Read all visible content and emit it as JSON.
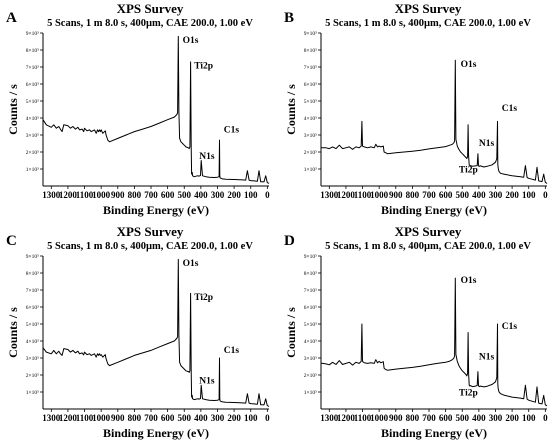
{
  "chart_data": [
    {
      "panel": "A",
      "type": "line",
      "title": "XPS Survey",
      "subtitle": "5 Scans, 1 m 8.0 s, 400µm, CAE 200.0, 1.00 eV",
      "xlabel": "Binding Energy (eV)",
      "ylabel": "Counts / s",
      "xlim": [
        1350,
        -10
      ],
      "x_reversed": true,
      "ylim": [
        0,
        900000
      ],
      "x_ticks": [
        1300,
        1200,
        1100,
        1000,
        900,
        800,
        700,
        600,
        500,
        400,
        300,
        200,
        100,
        0
      ],
      "y_ticks": [
        100000,
        200000,
        300000,
        400000,
        500000,
        600000,
        700000,
        800000,
        900000
      ],
      "y_tick_labels": [
        "1×10⁵",
        "2×10⁵",
        "3×10⁵",
        "4×10⁵",
        "5×10⁵",
        "6×10⁵",
        "7×10⁵",
        "8×10⁵",
        "9×10⁵"
      ],
      "grid": false,
      "series": [
        {
          "x": [
            1350,
            1330,
            1300,
            1285,
            1270,
            1255,
            1245,
            1235,
            1225,
            1200,
            1185,
            1170,
            1155,
            1140,
            1130,
            1115,
            1105,
            1100,
            1085,
            1070,
            1060,
            1040,
            1030,
            1022,
            1016,
            1010,
            1005,
            1000,
            990,
            975,
            970,
            960,
            950,
            900,
            850,
            800,
            750,
            700,
            650,
            600,
            560,
            545,
            540,
            536,
            532,
            528,
            524,
            520,
            510,
            500,
            490,
            475,
            470,
            466,
            462,
            458,
            456,
            452,
            450,
            440,
            420,
            410,
            402,
            398,
            390,
            370,
            350,
            320,
            300,
            290,
            288,
            286,
            284,
            282,
            278,
            270,
            250,
            200,
            150,
            130,
            120,
            110,
            100,
            80,
            60,
            50,
            40,
            30,
            20,
            10,
            0,
            -10
          ],
          "y": [
            390000,
            360000,
            345000,
            360000,
            340000,
            350000,
            335000,
            320000,
            360000,
            355000,
            340000,
            350000,
            335000,
            345000,
            330000,
            335000,
            320000,
            340000,
            325000,
            330000,
            320000,
            330000,
            310000,
            330000,
            320000,
            330000,
            320000,
            330000,
            310000,
            325000,
            300000,
            270000,
            260000,
            280000,
            300000,
            320000,
            335000,
            350000,
            370000,
            390000,
            405000,
            420000,
            430000,
            880000,
            440000,
            280000,
            270000,
            260000,
            250000,
            240000,
            230000,
            225000,
            220000,
            230000,
            730000,
            230000,
            70000,
            80000,
            60000,
            55000,
            60000,
            58000,
            62000,
            150000,
            60000,
            55000,
            52000,
            50000,
            52000,
            55000,
            270000,
            60000,
            48000,
            46000,
            45000,
            42000,
            40000,
            38000,
            36000,
            35000,
            90000,
            35000,
            32000,
            30000,
            28000,
            90000,
            25000,
            25000,
            24000,
            60000,
            20000,
            15000
          ]
        }
      ],
      "annotations": [
        {
          "text": "O1s",
          "x": 510,
          "y": 840000
        },
        {
          "text": "Ti2p",
          "x": 440,
          "y": 690000
        },
        {
          "text": "C1s",
          "x": 262,
          "y": 315000
        },
        {
          "text": "N1s",
          "x": 410,
          "y": 160000
        }
      ]
    },
    {
      "panel": "B",
      "type": "line",
      "title": "XPS Survey",
      "subtitle": "5 Scans, 1 m 8.0 s, 400µm, CAE 200.0, 1.00 eV",
      "xlabel": "Binding Energy (eV)",
      "ylabel": "Counts / s",
      "xlim": [
        1350,
        -10
      ],
      "x_reversed": true,
      "ylim": [
        0,
        900000
      ],
      "x_ticks": [
        1300,
        1200,
        1100,
        1000,
        900,
        800,
        700,
        600,
        500,
        400,
        300,
        200,
        100,
        0
      ],
      "y_ticks": [
        100000,
        200000,
        300000,
        400000,
        500000,
        600000,
        700000,
        800000,
        900000
      ],
      "y_tick_labels": [
        "1×10⁵",
        "2×10⁵",
        "3×10⁵",
        "4×10⁵",
        "5×10⁵",
        "6×10⁵",
        "7×10⁵",
        "8×10⁵",
        "9×10⁵"
      ],
      "grid": false,
      "series": [
        {
          "x": [
            1350,
            1320,
            1300,
            1280,
            1260,
            1240,
            1220,
            1200,
            1180,
            1160,
            1140,
            1120,
            1108,
            1104,
            1100,
            1090,
            1070,
            1050,
            1030,
            1020,
            1010,
            1000,
            990,
            975,
            970,
            960,
            950,
            900,
            850,
            800,
            750,
            700,
            650,
            600,
            575,
            560,
            550,
            546,
            542,
            538,
            534,
            530,
            520,
            510,
            500,
            490,
            480,
            472,
            468,
            465,
            462,
            458,
            454,
            450,
            440,
            420,
            410,
            406,
            402,
            398,
            390,
            370,
            350,
            320,
            300,
            292,
            288,
            286,
            284,
            282,
            278,
            270,
            250,
            200,
            150,
            130,
            120,
            110,
            100,
            80,
            60,
            50,
            40,
            30,
            20,
            10,
            0,
            -10
          ],
          "y": [
            225000,
            225000,
            220000,
            230000,
            220000,
            240000,
            220000,
            225000,
            230000,
            215000,
            230000,
            225000,
            235000,
            380000,
            235000,
            230000,
            225000,
            230000,
            225000,
            245000,
            230000,
            235000,
            230000,
            235000,
            200000,
            195000,
            190000,
            195000,
            200000,
            205000,
            210000,
            218000,
            225000,
            232000,
            240000,
            245000,
            255000,
            265000,
            740000,
            275000,
            255000,
            235000,
            215000,
            200000,
            190000,
            180000,
            170000,
            162000,
            175000,
            360000,
            175000,
            125000,
            118000,
            120000,
            116000,
            118000,
            120000,
            190000,
            120000,
            115000,
            118000,
            112000,
            116000,
            125000,
            140000,
            160000,
            380000,
            130000,
            110000,
            95000,
            85000,
            75000,
            70000,
            60000,
            55000,
            52000,
            120000,
            50000,
            45000,
            40000,
            35000,
            110000,
            30000,
            28000,
            26000,
            70000,
            22000,
            15000
          ]
        }
      ],
      "annotations": [
        {
          "text": "O1s",
          "x": 510,
          "y": 700000
        },
        {
          "text": "C1s",
          "x": 262,
          "y": 440000
        },
        {
          "text": "N1s",
          "x": 400,
          "y": 235000
        },
        {
          "text": "Ti2p",
          "x": 520,
          "y": 80000
        }
      ]
    },
    {
      "panel": "C",
      "type": "line",
      "title": "XPS Survey",
      "subtitle": "5 Scans, 1 m 8.0 s, 400µm, CAE 200.0, 1.00 eV",
      "xlabel": "Binding Energy (eV)",
      "ylabel": "Counts / s",
      "xlim": [
        1350,
        -10
      ],
      "x_reversed": true,
      "ylim": [
        0,
        900000
      ],
      "x_ticks": [
        1300,
        1200,
        1100,
        1000,
        900,
        800,
        700,
        600,
        500,
        400,
        300,
        200,
        100,
        0
      ],
      "y_ticks": [
        100000,
        200000,
        300000,
        400000,
        500000,
        600000,
        700000,
        800000,
        900000
      ],
      "y_tick_labels": [
        "1×10⁵",
        "2×10⁵",
        "3×10⁵",
        "4×10⁵",
        "5×10⁵",
        "6×10⁵",
        "7×10⁵",
        "8×10⁵",
        "9×10⁵"
      ],
      "grid": false,
      "series": [
        {
          "x": [
            1350,
            1330,
            1300,
            1285,
            1270,
            1255,
            1245,
            1235,
            1225,
            1200,
            1185,
            1170,
            1155,
            1140,
            1130,
            1115,
            1105,
            1100,
            1085,
            1070,
            1060,
            1040,
            1030,
            1022,
            1016,
            1010,
            1005,
            1000,
            990,
            975,
            970,
            960,
            950,
            900,
            850,
            800,
            750,
            700,
            650,
            600,
            560,
            545,
            540,
            536,
            532,
            528,
            524,
            520,
            510,
            500,
            490,
            475,
            470,
            466,
            462,
            458,
            456,
            452,
            450,
            440,
            420,
            410,
            402,
            398,
            390,
            370,
            350,
            320,
            300,
            290,
            288,
            286,
            284,
            282,
            278,
            270,
            250,
            200,
            150,
            130,
            120,
            110,
            100,
            80,
            60,
            50,
            40,
            30,
            20,
            10,
            0,
            -10
          ],
          "y": [
            360000,
            335000,
            325000,
            345000,
            325000,
            340000,
            325000,
            315000,
            355000,
            350000,
            335000,
            345000,
            330000,
            340000,
            325000,
            330000,
            318000,
            335000,
            320000,
            325000,
            315000,
            325000,
            305000,
            325000,
            315000,
            325000,
            315000,
            320000,
            305000,
            320000,
            295000,
            265000,
            255000,
            275000,
            295000,
            315000,
            330000,
            345000,
            365000,
            385000,
            400000,
            415000,
            425000,
            880000,
            435000,
            275000,
            265000,
            255000,
            245000,
            235000,
            225000,
            220000,
            215000,
            225000,
            680000,
            225000,
            70000,
            80000,
            60000,
            55000,
            60000,
            58000,
            62000,
            140000,
            60000,
            55000,
            52000,
            50000,
            52000,
            55000,
            300000,
            60000,
            48000,
            46000,
            45000,
            42000,
            40000,
            38000,
            36000,
            35000,
            90000,
            35000,
            32000,
            30000,
            28000,
            90000,
            25000,
            25000,
            24000,
            60000,
            20000,
            15000
          ]
        }
      ],
      "annotations": [
        {
          "text": "O1s",
          "x": 510,
          "y": 840000
        },
        {
          "text": "Ti2p",
          "x": 440,
          "y": 640000
        },
        {
          "text": "C1s",
          "x": 262,
          "y": 330000
        },
        {
          "text": "N1s",
          "x": 410,
          "y": 150000
        }
      ]
    },
    {
      "panel": "D",
      "type": "line",
      "title": "XPS Survey",
      "subtitle": "5 Scans, 1 m 8.0 s, 400µm, CAE 200.0, 1.00 eV",
      "xlabel": "Binding Energy (eV)",
      "ylabel": "Counts / s",
      "xlim": [
        1350,
        -10
      ],
      "x_reversed": true,
      "ylim": [
        0,
        900000
      ],
      "x_ticks": [
        1300,
        1200,
        1100,
        1000,
        900,
        800,
        700,
        600,
        500,
        400,
        300,
        200,
        100,
        0
      ],
      "y_ticks": [
        100000,
        200000,
        300000,
        400000,
        500000,
        600000,
        700000,
        800000,
        900000
      ],
      "y_tick_labels": [
        "1×10⁵",
        "2×10⁵",
        "3×10⁵",
        "4×10⁵",
        "5×10⁵",
        "6×10⁵",
        "7×10⁵",
        "8×10⁵",
        "9×10⁵"
      ],
      "grid": false,
      "series": [
        {
          "x": [
            1350,
            1320,
            1300,
            1280,
            1260,
            1240,
            1220,
            1200,
            1180,
            1160,
            1140,
            1120,
            1108,
            1104,
            1100,
            1090,
            1070,
            1050,
            1030,
            1020,
            1010,
            1000,
            990,
            975,
            970,
            960,
            950,
            900,
            850,
            800,
            750,
            700,
            650,
            600,
            575,
            560,
            550,
            546,
            542,
            538,
            534,
            530,
            520,
            510,
            500,
            490,
            480,
            472,
            468,
            465,
            462,
            458,
            454,
            450,
            440,
            420,
            410,
            406,
            402,
            398,
            390,
            370,
            350,
            320,
            300,
            292,
            288,
            286,
            284,
            282,
            278,
            270,
            250,
            200,
            150,
            130,
            120,
            110,
            100,
            80,
            60,
            50,
            40,
            30,
            20,
            10,
            0,
            -10
          ],
          "y": [
            270000,
            265000,
            260000,
            275000,
            262000,
            285000,
            262000,
            268000,
            275000,
            258000,
            275000,
            268000,
            280000,
            500000,
            280000,
            272000,
            268000,
            272000,
            268000,
            290000,
            272000,
            280000,
            272000,
            278000,
            240000,
            232000,
            228000,
            235000,
            240000,
            245000,
            252000,
            260000,
            268000,
            275000,
            282000,
            290000,
            300000,
            312000,
            770000,
            322000,
            300000,
            280000,
            255000,
            238000,
            225000,
            215000,
            205000,
            195000,
            210000,
            450000,
            210000,
            140000,
            135000,
            138000,
            132000,
            135000,
            138000,
            220000,
            138000,
            132000,
            135000,
            130000,
            134000,
            145000,
            160000,
            185000,
            500000,
            150000,
            125000,
            110000,
            100000,
            90000,
            82000,
            70000,
            64000,
            60000,
            140000,
            58000,
            52000,
            46000,
            40000,
            130000,
            35000,
            32000,
            30000,
            80000,
            25000,
            18000
          ]
        }
      ],
      "annotations": [
        {
          "text": "O1s",
          "x": 510,
          "y": 740000
        },
        {
          "text": "C1s",
          "x": 262,
          "y": 470000
        },
        {
          "text": "N1s",
          "x": 400,
          "y": 290000
        },
        {
          "text": "Ti2p",
          "x": 520,
          "y": 80000
        }
      ]
    }
  ]
}
